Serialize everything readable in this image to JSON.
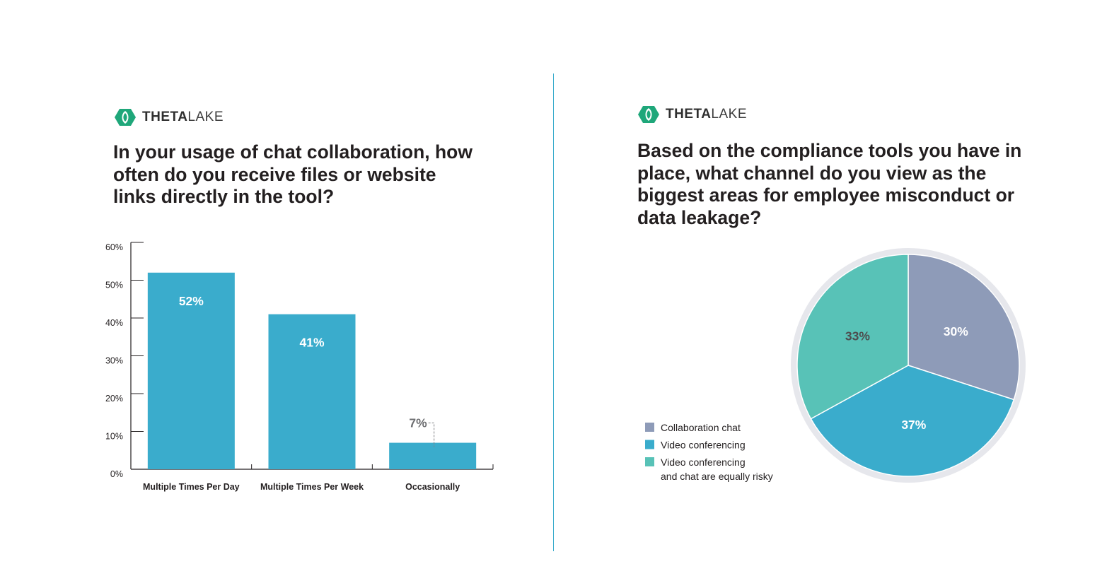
{
  "brand": {
    "name_bold": "THETA",
    "name_light": "LAKE",
    "color": "#1fa77a"
  },
  "left_panel": {
    "question": "In your usage of chat collaboration, how often do you receive files or website links directly in the tool?"
  },
  "right_panel": {
    "question": "Based on the compliance tools you have in place, what channel do you view as the biggest areas for employee misconduct or data leakage?"
  },
  "chart_data": [
    {
      "type": "bar",
      "categories": [
        "Multiple Times Per Day",
        "Multiple Times Per Week",
        "Occasionally"
      ],
      "values": [
        52,
        41,
        7
      ],
      "data_labels": [
        "52%",
        "41%",
        "7%"
      ],
      "ylim": [
        0,
        60
      ],
      "yticks": [
        0,
        10,
        20,
        30,
        40,
        50,
        60
      ],
      "ytick_labels": [
        "0%",
        "10%",
        "20%",
        "30%",
        "40%",
        "50%",
        "60%"
      ],
      "xlabel": "",
      "ylabel": "",
      "grid": false,
      "bar_color": "#3aaccc"
    },
    {
      "type": "pie",
      "slices": [
        {
          "label": "Collaboration chat",
          "value": 30,
          "data_label": "30%",
          "color": "#8e9bb8"
        },
        {
          "label": "Video conferencing",
          "value": 37,
          "data_label": "37%",
          "color": "#3aaccc"
        },
        {
          "label": "Video conferencing and chat are equally risky",
          "label_lines": [
            "Video conferencing",
            "and chat are equally risky"
          ],
          "value": 33,
          "data_label": "33%",
          "color": "#58c2b7"
        }
      ],
      "start": "12 o'clock, clockwise",
      "legend_position": "left",
      "rim_color": "#e6e7ec"
    }
  ]
}
